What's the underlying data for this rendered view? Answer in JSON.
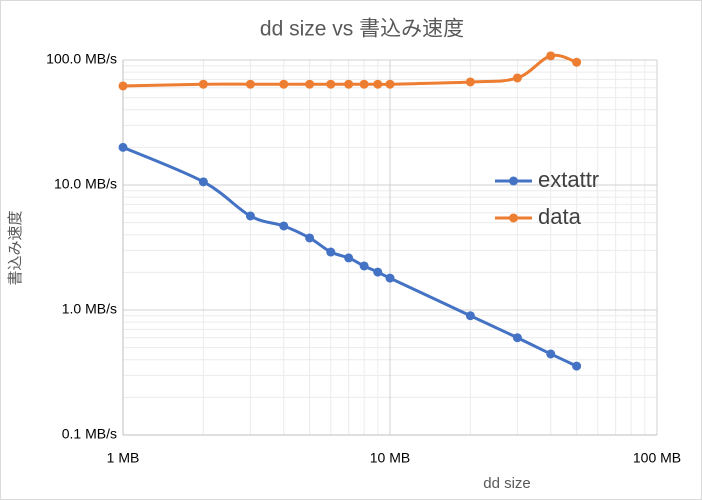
{
  "chart_data": {
    "type": "line",
    "title": "dd size vs 書込み速度",
    "x_label": "dd size",
    "y_label": "書込み速度",
    "x": [
      1,
      2,
      3,
      4,
      5,
      6,
      7,
      8,
      9,
      10,
      20,
      30,
      40,
      50
    ],
    "series": [
      {
        "name": "extattr",
        "color": "#4472c4",
        "values": [
          20,
          10.6,
          5.65,
          4.7,
          3.77,
          2.91,
          2.61,
          2.25,
          2.01,
          1.8,
          0.9,
          0.6,
          0.445,
          0.356
        ]
      },
      {
        "name": "data",
        "color": "#ed7d31",
        "values": [
          62,
          64,
          64,
          64,
          64,
          64,
          64,
          64,
          64,
          64,
          66.7,
          71.8,
          108,
          96
        ]
      }
    ],
    "x_log": true,
    "y_log": true,
    "xlim": [
      1,
      100
    ],
    "ylim": [
      0.1,
      100
    ],
    "xticks": [
      {
        "value": 1,
        "label": "1 MB"
      },
      {
        "value": 10,
        "label": "10 MB"
      },
      {
        "value": 100,
        "label": "100 MB"
      }
    ],
    "yticks": [
      {
        "value": 0.1,
        "label": "0.1 MB/s"
      },
      {
        "value": 1,
        "label": "1.0 MB/s"
      },
      {
        "value": 10,
        "label": "10.0 MB/s"
      },
      {
        "value": 100,
        "label": "100.0 MB/s"
      }
    ],
    "grid": true,
    "minor_grid": true,
    "legend": "right",
    "smooth": true
  }
}
